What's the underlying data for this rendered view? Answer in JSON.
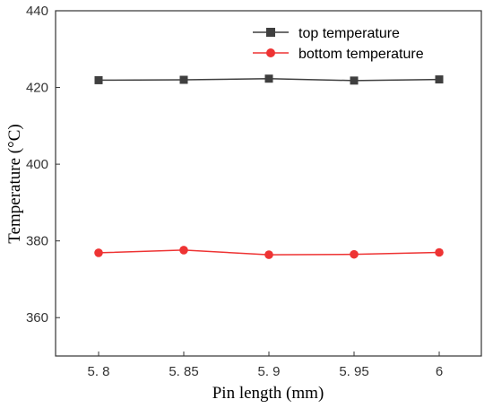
{
  "chart_data": {
    "type": "line",
    "title": "",
    "xlabel": "Pin length (mm)",
    "ylabel": "Temperature (°C)",
    "x": [
      5.8,
      5.85,
      5.9,
      5.95,
      6.0
    ],
    "x_tick_labels": [
      "5. 8",
      "5. 85",
      "5. 9",
      "5. 95",
      "6"
    ],
    "ylim": [
      350,
      440
    ],
    "y_ticks": [
      360,
      380,
      400,
      420,
      440
    ],
    "grid": false,
    "legend_position": "top-right",
    "series": [
      {
        "name": "top temperature",
        "values": [
          421.9,
          422.0,
          422.3,
          421.8,
          422.1
        ],
        "color": "#3f3f3f",
        "marker": "square"
      },
      {
        "name": "bottom temperature",
        "values": [
          376.9,
          377.6,
          376.4,
          376.5,
          377.0
        ],
        "color": "#ee3333",
        "marker": "circle"
      }
    ]
  }
}
